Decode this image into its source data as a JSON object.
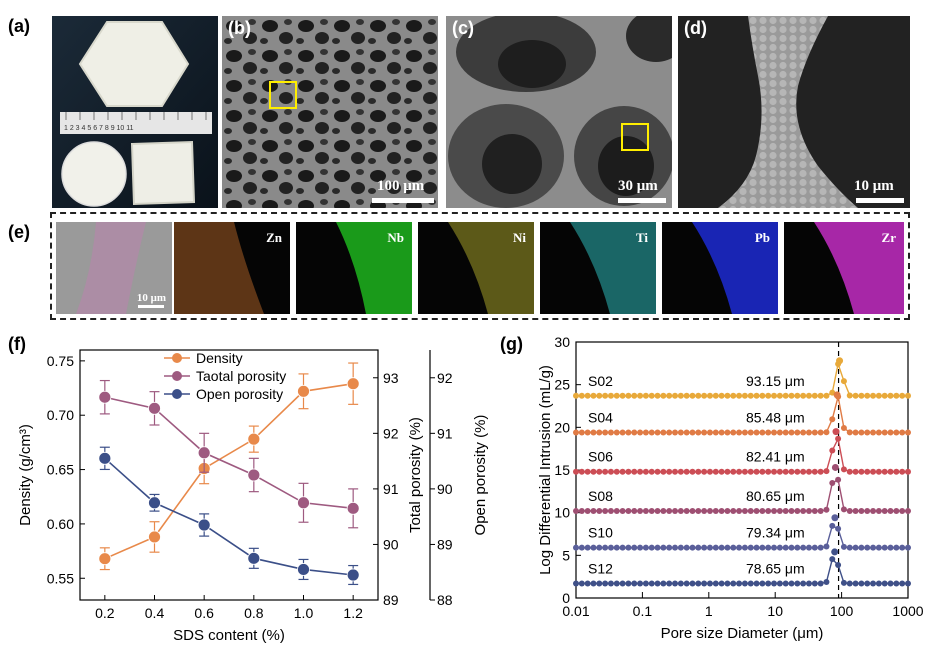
{
  "panels": {
    "a": "(a)",
    "b": "(b)",
    "c": "(c)",
    "d": "(d)",
    "e": "(e)",
    "f": "(f)",
    "g": "(g)"
  },
  "scalebars": {
    "b": "100 μm",
    "c": "30 μm",
    "d": "10 μm",
    "e": "10 μm"
  },
  "ruler_text": "1 2 3 4 5 6 7 8 9 10 11",
  "eds": {
    "elements": [
      "Zn",
      "Nb",
      "Ni",
      "Ti",
      "Pb",
      "Zr"
    ],
    "colors": [
      "#c9702c",
      "#22cc22",
      "#c8c030",
      "#30c8c8",
      "#2233ff",
      "#dd33dd"
    ]
  },
  "chart_data": [
    {
      "type": "line",
      "panel": "f",
      "xlabel": "SDS content (%)",
      "ylabel": "Density (g/cm³)",
      "y2label": "Total porosity (%)",
      "y3label": "Open porosity (%)",
      "x": [
        0.2,
        0.4,
        0.6,
        0.8,
        1.0,
        1.2
      ],
      "xticks": [
        "0.2",
        "0.4",
        "0.6",
        "0.8",
        "1.0",
        "1.2"
      ],
      "ylim": [
        0.53,
        0.76
      ],
      "yticks": [
        "0.55",
        "0.60",
        "0.65",
        "0.70",
        "0.75"
      ],
      "y2lim": [
        89.0,
        93.5
      ],
      "y2ticks": [
        "89",
        "90",
        "91",
        "92",
        "93"
      ],
      "y3lim": [
        88.0,
        92.5
      ],
      "y3ticks": [
        "88",
        "89",
        "90",
        "91",
        "92"
      ],
      "series": [
        {
          "name": "Density",
          "axis": "left",
          "color": "#e8894a",
          "values": [
            0.568,
            0.588,
            0.651,
            0.678,
            0.722,
            0.729
          ],
          "err": [
            0.01,
            0.014,
            0.014,
            0.012,
            0.016,
            0.019
          ]
        },
        {
          "name": "Taotal porosity",
          "axis": "right1",
          "color": "#9e5a80",
          "values": [
            92.65,
            92.45,
            91.65,
            91.25,
            90.75,
            90.65
          ],
          "err": [
            0.3,
            0.3,
            0.35,
            0.3,
            0.35,
            0.35
          ]
        },
        {
          "name": "Open porosity",
          "axis": "right2",
          "color": "#3b4f88",
          "values": [
            90.55,
            89.75,
            89.35,
            88.75,
            88.55,
            88.45
          ],
          "err": [
            0.2,
            0.15,
            0.2,
            0.18,
            0.18,
            0.17
          ]
        }
      ],
      "legend": "top-center"
    },
    {
      "type": "line",
      "panel": "g",
      "xlabel": "Pore size Diameter (μm)",
      "ylabel": "Log Differential Intrusion (mL/g)",
      "xscale": "log",
      "xlim": [
        0.01,
        1000
      ],
      "xticks": [
        "0.01",
        "0.1",
        "1",
        "10",
        "100",
        "1000"
      ],
      "ylim": [
        0,
        30
      ],
      "yticks": [
        "0",
        "5",
        "10",
        "15",
        "20",
        "25",
        "30"
      ],
      "dashed_line_x": 90,
      "series": [
        {
          "name": "S02",
          "color": "#e8a93a",
          "baseline": 23.7,
          "peak_x": 93.15,
          "peak": 27.8,
          "annotation": "93.15 μm"
        },
        {
          "name": "S04",
          "color": "#e07b45",
          "baseline": 19.4,
          "peak_x": 85.48,
          "peak": 23.8,
          "annotation": "85.48 μm"
        },
        {
          "name": "S06",
          "color": "#cc4d55",
          "baseline": 14.8,
          "peak_x": 82.41,
          "peak": 19.5,
          "annotation": "82.41 μm"
        },
        {
          "name": "S08",
          "color": "#9e4f72",
          "baseline": 10.2,
          "peak_x": 80.65,
          "peak": 15.3,
          "annotation": "80.65 μm"
        },
        {
          "name": "S10",
          "color": "#5a5f9a",
          "baseline": 5.9,
          "peak_x": 79.34,
          "peak": 9.4,
          "annotation": "79.34 μm"
        },
        {
          "name": "S12",
          "color": "#3f5088",
          "baseline": 1.7,
          "peak_x": 78.65,
          "peak": 5.4,
          "annotation": "78.65 μm"
        }
      ]
    }
  ]
}
